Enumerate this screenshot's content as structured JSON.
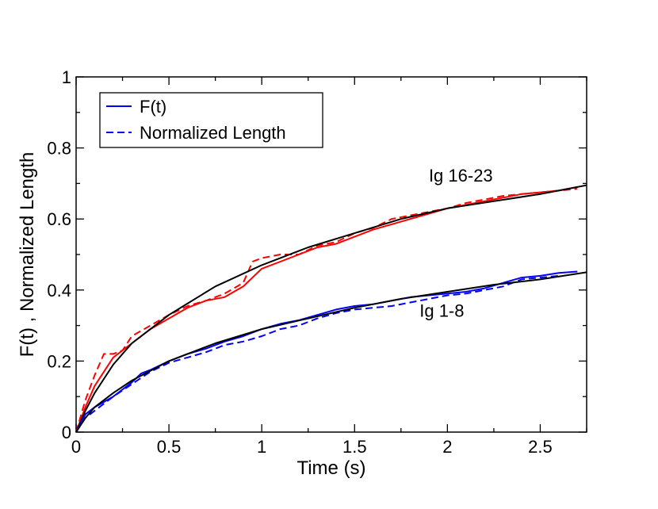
{
  "chart_data": {
    "type": "line",
    "title": "",
    "xlabel": "Time (s)",
    "ylabel": "F(t) , Normalized Length",
    "xlim": [
      0,
      2.75
    ],
    "ylim": [
      0,
      1
    ],
    "xticks": [
      0,
      0.5,
      1,
      1.5,
      2,
      2.5
    ],
    "xtick_labels": [
      "0",
      "0.5",
      "1",
      "1.5",
      "2",
      "2.5"
    ],
    "yticks": [
      0,
      0.2,
      0.4,
      0.6,
      0.8,
      1
    ],
    "ytick_labels": [
      "0",
      "0.2",
      "0.4",
      "0.6",
      "0.8",
      "1"
    ],
    "legend": {
      "position": "top-left",
      "entries": [
        {
          "label": "F(t)",
          "style": "solid",
          "color": "#0000ff"
        },
        {
          "label": "Normalized Length",
          "style": "dashed",
          "color": "#0000ff"
        }
      ]
    },
    "annotations": [
      {
        "text": "Ig 16-23",
        "x": 1.9,
        "y": 0.705
      },
      {
        "text": "Ig 1-8",
        "x": 1.85,
        "y": 0.325
      }
    ],
    "series": [
      {
        "name": "Ig 16-23 F(t)",
        "group": "Ig 16-23",
        "style": "solid",
        "color": "#ff0000",
        "x": [
          0,
          0.05,
          0.1,
          0.15,
          0.2,
          0.3,
          0.4,
          0.5,
          0.6,
          0.7,
          0.8,
          0.9,
          1.0,
          1.1,
          1.2,
          1.3,
          1.4,
          1.5,
          1.6,
          1.7,
          1.8,
          1.9,
          2.0,
          2.1,
          2.2,
          2.3,
          2.4,
          2.5,
          2.6,
          2.7
        ],
        "y": [
          0,
          0.07,
          0.13,
          0.17,
          0.21,
          0.25,
          0.29,
          0.32,
          0.35,
          0.37,
          0.38,
          0.41,
          0.46,
          0.48,
          0.5,
          0.52,
          0.53,
          0.55,
          0.57,
          0.585,
          0.6,
          0.615,
          0.63,
          0.64,
          0.65,
          0.66,
          0.67,
          0.675,
          0.68,
          0.69
        ]
      },
      {
        "name": "Ig 16-23 Normalized Length",
        "group": "Ig 16-23",
        "style": "dashed",
        "color": "#ff0000",
        "x": [
          0,
          0.05,
          0.1,
          0.15,
          0.2,
          0.25,
          0.3,
          0.4,
          0.5,
          0.6,
          0.7,
          0.8,
          0.9,
          0.95,
          1.0,
          1.1,
          1.2,
          1.3,
          1.4,
          1.5,
          1.6,
          1.7,
          1.8,
          1.9,
          2.0,
          2.1,
          2.2,
          2.3,
          2.4,
          2.5,
          2.6,
          2.7
        ],
        "y": [
          0,
          0.09,
          0.16,
          0.22,
          0.22,
          0.23,
          0.27,
          0.3,
          0.33,
          0.355,
          0.37,
          0.39,
          0.42,
          0.48,
          0.49,
          0.5,
          0.5,
          0.525,
          0.535,
          0.56,
          0.575,
          0.6,
          0.61,
          0.62,
          0.63,
          0.645,
          0.655,
          0.665,
          0.67,
          0.675,
          0.68,
          0.685
        ]
      },
      {
        "name": "Ig 16-23 fit",
        "group": "Ig 16-23",
        "style": "solid",
        "color": "#000000",
        "x": [
          0,
          0.05,
          0.1,
          0.2,
          0.3,
          0.5,
          0.75,
          1.0,
          1.25,
          1.5,
          1.75,
          2.0,
          2.25,
          2.5,
          2.75
        ],
        "y": [
          0,
          0.06,
          0.11,
          0.19,
          0.25,
          0.33,
          0.41,
          0.47,
          0.52,
          0.56,
          0.6,
          0.63,
          0.65,
          0.67,
          0.695
        ]
      },
      {
        "name": "Ig 1-8 F(t)",
        "group": "Ig 1-8",
        "style": "solid",
        "color": "#0000ff",
        "x": [
          0,
          0.05,
          0.1,
          0.2,
          0.3,
          0.35,
          0.4,
          0.5,
          0.6,
          0.7,
          0.8,
          0.9,
          1.0,
          1.1,
          1.2,
          1.3,
          1.4,
          1.5,
          1.6,
          1.7,
          1.8,
          1.9,
          2.0,
          2.1,
          2.2,
          2.3,
          2.4,
          2.5,
          2.6,
          2.7
        ],
        "y": [
          0,
          0.05,
          0.07,
          0.1,
          0.14,
          0.165,
          0.175,
          0.2,
          0.22,
          0.235,
          0.255,
          0.27,
          0.29,
          0.305,
          0.315,
          0.33,
          0.345,
          0.355,
          0.36,
          0.37,
          0.38,
          0.385,
          0.39,
          0.395,
          0.405,
          0.42,
          0.435,
          0.44,
          0.448,
          0.452
        ]
      },
      {
        "name": "Ig 1-8 Normalized Length",
        "group": "Ig 1-8",
        "style": "dashed",
        "color": "#0000ff",
        "x": [
          0,
          0.05,
          0.1,
          0.2,
          0.3,
          0.4,
          0.5,
          0.6,
          0.7,
          0.8,
          0.9,
          1.0,
          1.1,
          1.2,
          1.3,
          1.4,
          1.5,
          1.6,
          1.7,
          1.8,
          1.9,
          2.0,
          2.1,
          2.2,
          2.3,
          2.4,
          2.5,
          2.6
        ],
        "y": [
          0,
          0.04,
          0.06,
          0.1,
          0.135,
          0.17,
          0.195,
          0.21,
          0.225,
          0.245,
          0.255,
          0.27,
          0.29,
          0.3,
          0.32,
          0.335,
          0.345,
          0.35,
          0.355,
          0.365,
          0.375,
          0.385,
          0.39,
          0.4,
          0.41,
          0.43,
          0.435,
          0.44
        ]
      },
      {
        "name": "Ig 1-8 fit",
        "group": "Ig 1-8",
        "style": "solid",
        "color": "#000000",
        "x": [
          0,
          0.05,
          0.1,
          0.2,
          0.3,
          0.5,
          0.75,
          1.0,
          1.25,
          1.5,
          1.75,
          2.0,
          2.25,
          2.5,
          2.75
        ],
        "y": [
          0,
          0.04,
          0.07,
          0.11,
          0.145,
          0.2,
          0.25,
          0.29,
          0.32,
          0.35,
          0.375,
          0.395,
          0.415,
          0.43,
          0.45
        ]
      }
    ]
  }
}
